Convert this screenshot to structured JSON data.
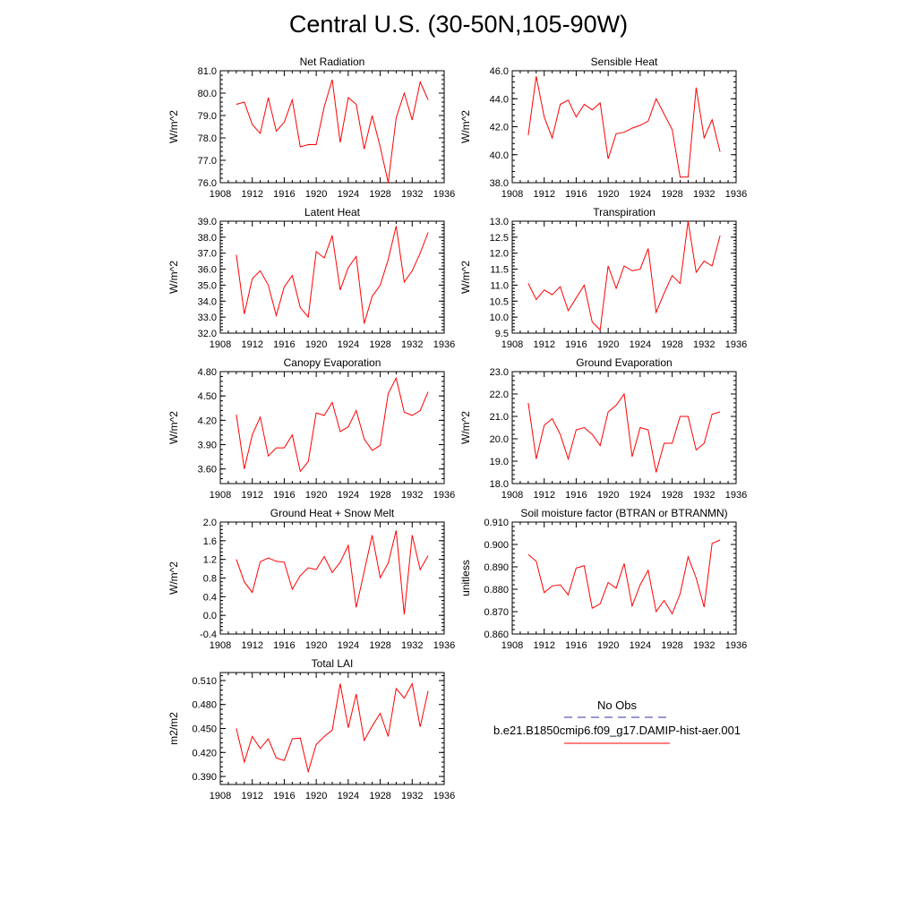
{
  "figure_title": "Central U.S. (30-50N,105-90W)",
  "legend": {
    "entries": [
      {
        "label": "No Obs",
        "color": "#3333aa",
        "dash": true
      },
      {
        "label": "b.e21.B1850cmip6.f09_g17.DAMIP-hist-aer.001",
        "color": "#ff0000",
        "dash": false
      }
    ]
  },
  "chart_data": [
    {
      "type": "line",
      "title": "Net Radiation",
      "ylabel": "W/m^2",
      "xlim": [
        1908,
        1936
      ],
      "ylim": [
        76.0,
        81.0
      ],
      "xticks": [
        1908,
        1912,
        1916,
        1920,
        1924,
        1928,
        1932,
        1936
      ],
      "yticks": [
        76.0,
        77.0,
        78.0,
        79.0,
        80.0,
        81.0
      ],
      "ydecimals": 1,
      "x": [
        1910,
        1911,
        1912,
        1913,
        1914,
        1915,
        1916,
        1917,
        1918,
        1919,
        1920,
        1921,
        1922,
        1923,
        1924,
        1925,
        1926,
        1927,
        1928,
        1929,
        1930,
        1931,
        1932,
        1933,
        1934
      ],
      "series": [
        {
          "color": "#ff0000",
          "values": [
            79.5,
            79.6,
            78.6,
            78.2,
            79.8,
            78.3,
            78.7,
            79.7,
            77.6,
            77.7,
            77.7,
            79.4,
            80.6,
            77.8,
            79.8,
            79.5,
            77.5,
            79.0,
            77.6,
            76.0,
            78.9,
            80.0,
            78.8,
            80.5,
            79.7
          ]
        }
      ]
    },
    {
      "type": "line",
      "title": "Sensible Heat",
      "ylabel": "W/m^2",
      "xlim": [
        1908,
        1936
      ],
      "ylim": [
        38.0,
        46.0
      ],
      "xticks": [
        1908,
        1912,
        1916,
        1920,
        1924,
        1928,
        1932,
        1936
      ],
      "yticks": [
        38.0,
        40.0,
        42.0,
        44.0,
        46.0
      ],
      "ydecimals": 1,
      "x": [
        1910,
        1911,
        1912,
        1913,
        1914,
        1915,
        1916,
        1917,
        1918,
        1919,
        1920,
        1921,
        1922,
        1923,
        1924,
        1925,
        1926,
        1927,
        1928,
        1929,
        1930,
        1931,
        1932,
        1933,
        1934
      ],
      "series": [
        {
          "color": "#ff0000",
          "values": [
            41.4,
            45.6,
            42.7,
            41.2,
            43.6,
            43.9,
            42.7,
            43.6,
            43.2,
            43.7,
            39.7,
            41.5,
            41.6,
            41.9,
            42.1,
            42.4,
            44.0,
            42.9,
            41.8,
            38.4,
            38.4,
            44.8,
            41.2,
            42.5,
            40.2
          ]
        }
      ]
    },
    {
      "type": "line",
      "title": "Latent Heat",
      "ylabel": "W/m^2",
      "xlim": [
        1908,
        1936
      ],
      "ylim": [
        32.0,
        39.0
      ],
      "xticks": [
        1908,
        1912,
        1916,
        1920,
        1924,
        1928,
        1932,
        1936
      ],
      "yticks": [
        32.0,
        33.0,
        34.0,
        35.0,
        36.0,
        37.0,
        38.0,
        39.0
      ],
      "ydecimals": 1,
      "x": [
        1910,
        1911,
        1912,
        1913,
        1914,
        1915,
        1916,
        1917,
        1918,
        1919,
        1920,
        1921,
        1922,
        1923,
        1924,
        1925,
        1926,
        1927,
        1928,
        1929,
        1930,
        1931,
        1932,
        1933,
        1934
      ],
      "series": [
        {
          "color": "#ff0000",
          "values": [
            36.9,
            33.2,
            35.4,
            35.9,
            35.0,
            33.1,
            34.9,
            35.6,
            33.6,
            33.0,
            37.1,
            36.7,
            38.1,
            34.7,
            36.1,
            36.8,
            32.6,
            34.3,
            35.0,
            36.6,
            38.7,
            35.2,
            35.9,
            37.0,
            38.3
          ]
        }
      ]
    },
    {
      "type": "line",
      "title": "Transpiration",
      "ylabel": "W/m^2",
      "xlim": [
        1908,
        1936
      ],
      "ylim": [
        9.5,
        13.0
      ],
      "xticks": [
        1908,
        1912,
        1916,
        1920,
        1924,
        1928,
        1932,
        1936
      ],
      "yticks": [
        9.5,
        10.0,
        10.5,
        11.0,
        11.5,
        12.0,
        12.5,
        13.0
      ],
      "ydecimals": 1,
      "x": [
        1910,
        1911,
        1912,
        1913,
        1914,
        1915,
        1916,
        1917,
        1918,
        1919,
        1920,
        1921,
        1922,
        1923,
        1924,
        1925,
        1926,
        1927,
        1928,
        1929,
        1930,
        1931,
        1932,
        1933,
        1934
      ],
      "series": [
        {
          "color": "#ff0000",
          "values": [
            11.05,
            10.55,
            10.85,
            10.7,
            10.95,
            10.2,
            10.6,
            11.0,
            9.85,
            9.6,
            11.6,
            10.9,
            11.6,
            11.45,
            11.5,
            12.15,
            10.15,
            10.75,
            11.3,
            11.05,
            13.0,
            11.4,
            11.75,
            11.6,
            12.55
          ]
        }
      ]
    },
    {
      "type": "line",
      "title": "Canopy Evaporation",
      "ylabel": "W/m^2",
      "xlim": [
        1908,
        1936
      ],
      "ylim": [
        3.42,
        4.8
      ],
      "xticks": [
        1908,
        1912,
        1916,
        1920,
        1924,
        1928,
        1932,
        1936
      ],
      "yticks": [
        3.6,
        3.9,
        4.2,
        4.5,
        4.8
      ],
      "ydecimals": 2,
      "x": [
        1910,
        1911,
        1912,
        1913,
        1914,
        1915,
        1916,
        1917,
        1918,
        1919,
        1920,
        1921,
        1922,
        1923,
        1924,
        1925,
        1926,
        1927,
        1928,
        1929,
        1930,
        1931,
        1932,
        1933,
        1934
      ],
      "series": [
        {
          "color": "#ff0000",
          "values": [
            4.27,
            3.6,
            4.02,
            4.24,
            3.76,
            3.86,
            3.86,
            4.02,
            3.57,
            3.69,
            4.29,
            4.26,
            4.42,
            4.06,
            4.12,
            4.32,
            3.97,
            3.83,
            3.89,
            4.53,
            4.72,
            4.3,
            4.26,
            4.32,
            4.55
          ]
        }
      ]
    },
    {
      "type": "line",
      "title": "Ground Evaporation",
      "ylabel": "W/m^2",
      "xlim": [
        1908,
        1936
      ],
      "ylim": [
        18.0,
        23.0
      ],
      "xticks": [
        1908,
        1912,
        1916,
        1920,
        1924,
        1928,
        1932,
        1936
      ],
      "yticks": [
        18.0,
        19.0,
        20.0,
        21.0,
        22.0,
        23.0
      ],
      "ydecimals": 1,
      "x": [
        1910,
        1911,
        1912,
        1913,
        1914,
        1915,
        1916,
        1917,
        1918,
        1919,
        1920,
        1921,
        1922,
        1923,
        1924,
        1925,
        1926,
        1927,
        1928,
        1929,
        1930,
        1931,
        1932,
        1933,
        1934
      ],
      "series": [
        {
          "color": "#ff0000",
          "values": [
            21.6,
            19.1,
            20.6,
            20.9,
            20.2,
            19.1,
            20.4,
            20.5,
            20.2,
            19.7,
            21.2,
            21.5,
            22.0,
            19.2,
            20.5,
            20.4,
            18.5,
            19.8,
            19.8,
            21.0,
            21.0,
            19.5,
            19.8,
            21.1,
            21.2
          ]
        }
      ]
    },
    {
      "type": "line",
      "title": "Ground Heat + Snow Melt",
      "ylabel": "W/m^2",
      "xlim": [
        1908,
        1936
      ],
      "ylim": [
        -0.4,
        2.0
      ],
      "xticks": [
        1908,
        1912,
        1916,
        1920,
        1924,
        1928,
        1932,
        1936
      ],
      "yticks": [
        -0.4,
        0.0,
        0.4,
        0.8,
        1.2,
        1.6,
        2.0
      ],
      "ydecimals": 1,
      "x": [
        1910,
        1911,
        1912,
        1913,
        1914,
        1915,
        1916,
        1917,
        1918,
        1919,
        1920,
        1921,
        1922,
        1923,
        1924,
        1925,
        1926,
        1927,
        1928,
        1929,
        1930,
        1931,
        1932,
        1933,
        1934
      ],
      "series": [
        {
          "color": "#ff0000",
          "values": [
            1.2,
            0.72,
            0.49,
            1.15,
            1.23,
            1.16,
            1.14,
            0.56,
            0.85,
            1.02,
            0.98,
            1.26,
            0.92,
            1.14,
            1.5,
            0.17,
            0.94,
            1.72,
            0.81,
            1.12,
            1.82,
            0.02,
            1.72,
            0.98,
            1.28
          ]
        }
      ]
    },
    {
      "type": "line",
      "title": "Soil moisture factor (BTRAN or BTRANMN)",
      "ylabel": "unitless",
      "xlim": [
        1908,
        1936
      ],
      "ylim": [
        0.86,
        0.91
      ],
      "xticks": [
        1908,
        1912,
        1916,
        1920,
        1924,
        1928,
        1932,
        1936
      ],
      "yticks": [
        0.86,
        0.87,
        0.88,
        0.89,
        0.9,
        0.91
      ],
      "ydecimals": 3,
      "x": [
        1910,
        1911,
        1912,
        1913,
        1914,
        1915,
        1916,
        1917,
        1918,
        1919,
        1920,
        1921,
        1922,
        1923,
        1924,
        1925,
        1926,
        1927,
        1928,
        1929,
        1930,
        1931,
        1932,
        1933,
        1934
      ],
      "series": [
        {
          "color": "#ff0000",
          "values": [
            0.8955,
            0.8925,
            0.8785,
            0.8815,
            0.882,
            0.8775,
            0.8895,
            0.8905,
            0.8715,
            0.8735,
            0.883,
            0.8805,
            0.8915,
            0.8725,
            0.882,
            0.8885,
            0.87,
            0.875,
            0.869,
            0.878,
            0.8945,
            0.885,
            0.872,
            0.9005,
            0.902
          ]
        }
      ]
    },
    {
      "type": "line",
      "title": "Total LAI",
      "ylabel": "m2/m2",
      "xlim": [
        1908,
        1936
      ],
      "ylim": [
        0.38,
        0.52
      ],
      "xticks": [
        1908,
        1912,
        1916,
        1920,
        1924,
        1928,
        1932,
        1936
      ],
      "yticks": [
        0.39,
        0.42,
        0.45,
        0.48,
        0.51
      ],
      "ydecimals": 3,
      "x": [
        1910,
        1911,
        1912,
        1913,
        1914,
        1915,
        1916,
        1917,
        1918,
        1919,
        1920,
        1921,
        1922,
        1923,
        1924,
        1925,
        1926,
        1927,
        1928,
        1929,
        1930,
        1931,
        1932,
        1933,
        1934
      ],
      "series": [
        {
          "color": "#ff0000",
          "values": [
            0.45,
            0.408,
            0.44,
            0.425,
            0.437,
            0.413,
            0.41,
            0.437,
            0.438,
            0.396,
            0.43,
            0.44,
            0.448,
            0.506,
            0.451,
            0.493,
            0.435,
            0.453,
            0.469,
            0.44,
            0.5,
            0.488,
            0.506,
            0.452,
            0.497
          ]
        }
      ]
    }
  ]
}
